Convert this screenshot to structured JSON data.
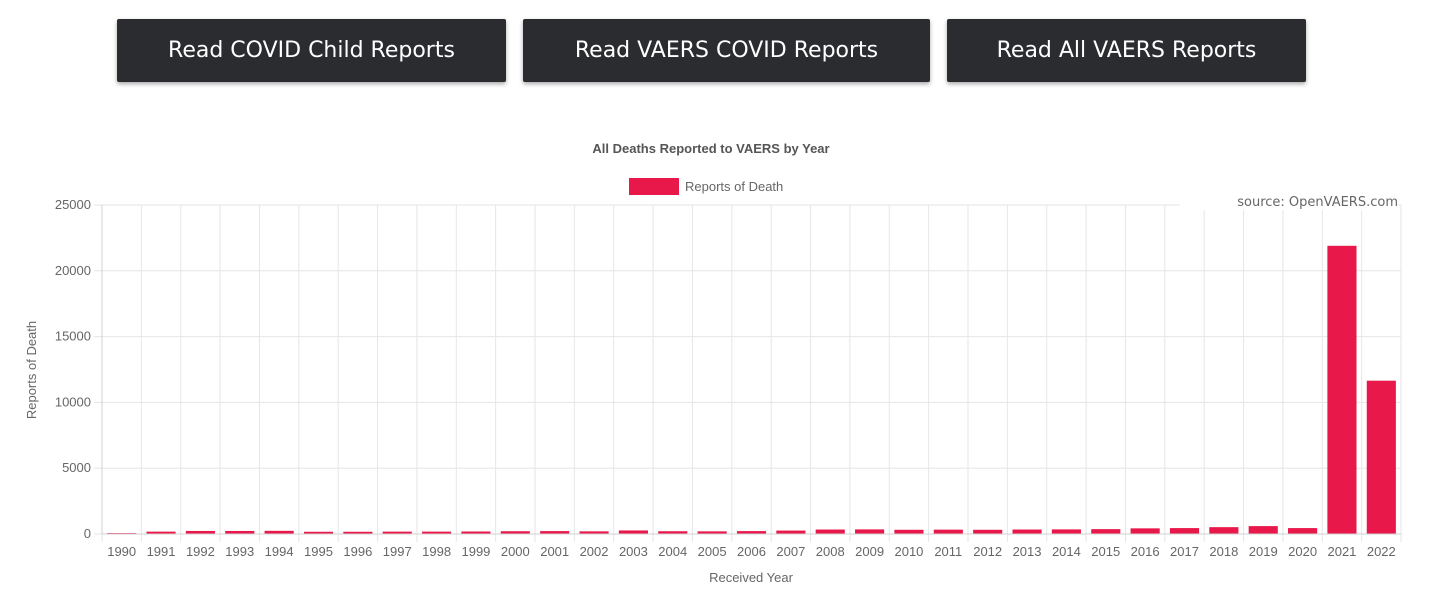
{
  "buttons": {
    "child": "Read COVID Child Reports",
    "covid": "Read VAERS COVID Reports",
    "all": "Read All VAERS Reports"
  },
  "source_note": "source: OpenVAERS.com",
  "colors": {
    "bar": "#e8194a",
    "button_bg": "#2b2c30",
    "grid": "#e6e6e6"
  },
  "chart_data": {
    "type": "bar",
    "title": "All Deaths Reported to VAERS by Year",
    "xlabel": "Received Year",
    "ylabel": "Reports of Death",
    "ylim": [
      0,
      25000
    ],
    "yticks": [
      0,
      5000,
      10000,
      15000,
      20000,
      25000
    ],
    "grid": true,
    "legend": "top-center",
    "categories": [
      "1990",
      "1991",
      "1992",
      "1993",
      "1994",
      "1995",
      "1996",
      "1997",
      "1998",
      "1999",
      "2000",
      "2001",
      "2002",
      "2003",
      "2004",
      "2005",
      "2006",
      "2007",
      "2008",
      "2009",
      "2010",
      "2011",
      "2012",
      "2013",
      "2014",
      "2015",
      "2016",
      "2017",
      "2018",
      "2019",
      "2020",
      "2021",
      "2022"
    ],
    "series": [
      {
        "name": "Reports of Death",
        "values": [
          70,
          180,
          230,
          230,
          240,
          170,
          170,
          180,
          180,
          190,
          210,
          220,
          200,
          270,
          210,
          200,
          220,
          260,
          340,
          350,
          320,
          330,
          320,
          340,
          350,
          370,
          430,
          450,
          520,
          600,
          450,
          21900,
          11650
        ]
      }
    ]
  }
}
